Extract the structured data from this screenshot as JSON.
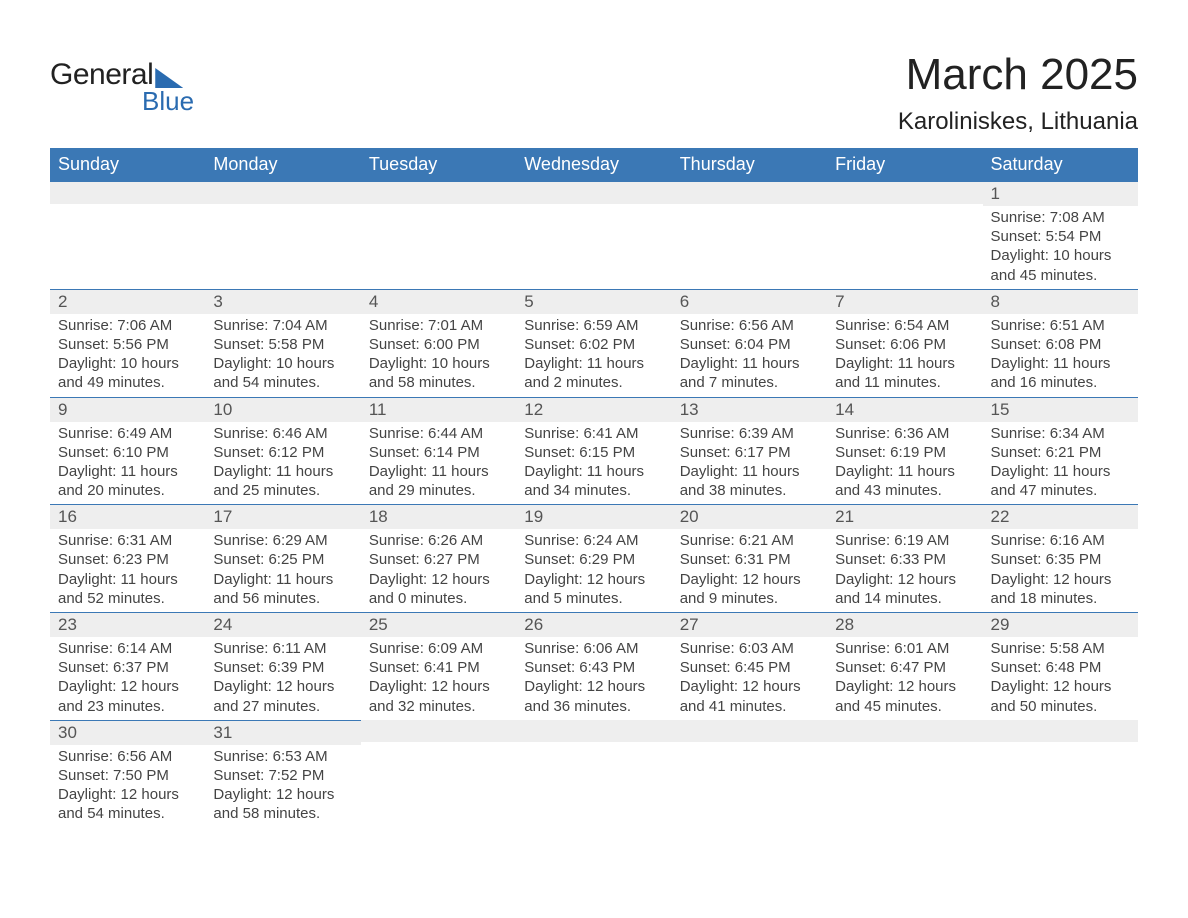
{
  "logo": {
    "text1": "General",
    "text2": "Blue"
  },
  "title": "March 2025",
  "location": "Karoliniskes, Lithuania",
  "colors": {
    "header_bg": "#3b78b5",
    "header_text": "#ffffff",
    "daynum_bg": "#eeeeee",
    "body_text": "#444444",
    "accent": "#2a6bb0"
  },
  "day_headers": [
    "Sunday",
    "Monday",
    "Tuesday",
    "Wednesday",
    "Thursday",
    "Friday",
    "Saturday"
  ],
  "weeks": [
    [
      {
        "n": "",
        "sr": "",
        "ss": "",
        "d1": "",
        "d2": ""
      },
      {
        "n": "",
        "sr": "",
        "ss": "",
        "d1": "",
        "d2": ""
      },
      {
        "n": "",
        "sr": "",
        "ss": "",
        "d1": "",
        "d2": ""
      },
      {
        "n": "",
        "sr": "",
        "ss": "",
        "d1": "",
        "d2": ""
      },
      {
        "n": "",
        "sr": "",
        "ss": "",
        "d1": "",
        "d2": ""
      },
      {
        "n": "",
        "sr": "",
        "ss": "",
        "d1": "",
        "d2": ""
      },
      {
        "n": "1",
        "sr": "Sunrise: 7:08 AM",
        "ss": "Sunset: 5:54 PM",
        "d1": "Daylight: 10 hours",
        "d2": "and 45 minutes."
      }
    ],
    [
      {
        "n": "2",
        "sr": "Sunrise: 7:06 AM",
        "ss": "Sunset: 5:56 PM",
        "d1": "Daylight: 10 hours",
        "d2": "and 49 minutes."
      },
      {
        "n": "3",
        "sr": "Sunrise: 7:04 AM",
        "ss": "Sunset: 5:58 PM",
        "d1": "Daylight: 10 hours",
        "d2": "and 54 minutes."
      },
      {
        "n": "4",
        "sr": "Sunrise: 7:01 AM",
        "ss": "Sunset: 6:00 PM",
        "d1": "Daylight: 10 hours",
        "d2": "and 58 minutes."
      },
      {
        "n": "5",
        "sr": "Sunrise: 6:59 AM",
        "ss": "Sunset: 6:02 PM",
        "d1": "Daylight: 11 hours",
        "d2": "and 2 minutes."
      },
      {
        "n": "6",
        "sr": "Sunrise: 6:56 AM",
        "ss": "Sunset: 6:04 PM",
        "d1": "Daylight: 11 hours",
        "d2": "and 7 minutes."
      },
      {
        "n": "7",
        "sr": "Sunrise: 6:54 AM",
        "ss": "Sunset: 6:06 PM",
        "d1": "Daylight: 11 hours",
        "d2": "and 11 minutes."
      },
      {
        "n": "8",
        "sr": "Sunrise: 6:51 AM",
        "ss": "Sunset: 6:08 PM",
        "d1": "Daylight: 11 hours",
        "d2": "and 16 minutes."
      }
    ],
    [
      {
        "n": "9",
        "sr": "Sunrise: 6:49 AM",
        "ss": "Sunset: 6:10 PM",
        "d1": "Daylight: 11 hours",
        "d2": "and 20 minutes."
      },
      {
        "n": "10",
        "sr": "Sunrise: 6:46 AM",
        "ss": "Sunset: 6:12 PM",
        "d1": "Daylight: 11 hours",
        "d2": "and 25 minutes."
      },
      {
        "n": "11",
        "sr": "Sunrise: 6:44 AM",
        "ss": "Sunset: 6:14 PM",
        "d1": "Daylight: 11 hours",
        "d2": "and 29 minutes."
      },
      {
        "n": "12",
        "sr": "Sunrise: 6:41 AM",
        "ss": "Sunset: 6:15 PM",
        "d1": "Daylight: 11 hours",
        "d2": "and 34 minutes."
      },
      {
        "n": "13",
        "sr": "Sunrise: 6:39 AM",
        "ss": "Sunset: 6:17 PM",
        "d1": "Daylight: 11 hours",
        "d2": "and 38 minutes."
      },
      {
        "n": "14",
        "sr": "Sunrise: 6:36 AM",
        "ss": "Sunset: 6:19 PM",
        "d1": "Daylight: 11 hours",
        "d2": "and 43 minutes."
      },
      {
        "n": "15",
        "sr": "Sunrise: 6:34 AM",
        "ss": "Sunset: 6:21 PM",
        "d1": "Daylight: 11 hours",
        "d2": "and 47 minutes."
      }
    ],
    [
      {
        "n": "16",
        "sr": "Sunrise: 6:31 AM",
        "ss": "Sunset: 6:23 PM",
        "d1": "Daylight: 11 hours",
        "d2": "and 52 minutes."
      },
      {
        "n": "17",
        "sr": "Sunrise: 6:29 AM",
        "ss": "Sunset: 6:25 PM",
        "d1": "Daylight: 11 hours",
        "d2": "and 56 minutes."
      },
      {
        "n": "18",
        "sr": "Sunrise: 6:26 AM",
        "ss": "Sunset: 6:27 PM",
        "d1": "Daylight: 12 hours",
        "d2": "and 0 minutes."
      },
      {
        "n": "19",
        "sr": "Sunrise: 6:24 AM",
        "ss": "Sunset: 6:29 PM",
        "d1": "Daylight: 12 hours",
        "d2": "and 5 minutes."
      },
      {
        "n": "20",
        "sr": "Sunrise: 6:21 AM",
        "ss": "Sunset: 6:31 PM",
        "d1": "Daylight: 12 hours",
        "d2": "and 9 minutes."
      },
      {
        "n": "21",
        "sr": "Sunrise: 6:19 AM",
        "ss": "Sunset: 6:33 PM",
        "d1": "Daylight: 12 hours",
        "d2": "and 14 minutes."
      },
      {
        "n": "22",
        "sr": "Sunrise: 6:16 AM",
        "ss": "Sunset: 6:35 PM",
        "d1": "Daylight: 12 hours",
        "d2": "and 18 minutes."
      }
    ],
    [
      {
        "n": "23",
        "sr": "Sunrise: 6:14 AM",
        "ss": "Sunset: 6:37 PM",
        "d1": "Daylight: 12 hours",
        "d2": "and 23 minutes."
      },
      {
        "n": "24",
        "sr": "Sunrise: 6:11 AM",
        "ss": "Sunset: 6:39 PM",
        "d1": "Daylight: 12 hours",
        "d2": "and 27 minutes."
      },
      {
        "n": "25",
        "sr": "Sunrise: 6:09 AM",
        "ss": "Sunset: 6:41 PM",
        "d1": "Daylight: 12 hours",
        "d2": "and 32 minutes."
      },
      {
        "n": "26",
        "sr": "Sunrise: 6:06 AM",
        "ss": "Sunset: 6:43 PM",
        "d1": "Daylight: 12 hours",
        "d2": "and 36 minutes."
      },
      {
        "n": "27",
        "sr": "Sunrise: 6:03 AM",
        "ss": "Sunset: 6:45 PM",
        "d1": "Daylight: 12 hours",
        "d2": "and 41 minutes."
      },
      {
        "n": "28",
        "sr": "Sunrise: 6:01 AM",
        "ss": "Sunset: 6:47 PM",
        "d1": "Daylight: 12 hours",
        "d2": "and 45 minutes."
      },
      {
        "n": "29",
        "sr": "Sunrise: 5:58 AM",
        "ss": "Sunset: 6:48 PM",
        "d1": "Daylight: 12 hours",
        "d2": "and 50 minutes."
      }
    ],
    [
      {
        "n": "30",
        "sr": "Sunrise: 6:56 AM",
        "ss": "Sunset: 7:50 PM",
        "d1": "Daylight: 12 hours",
        "d2": "and 54 minutes."
      },
      {
        "n": "31",
        "sr": "Sunrise: 6:53 AM",
        "ss": "Sunset: 7:52 PM",
        "d1": "Daylight: 12 hours",
        "d2": "and 58 minutes."
      },
      {
        "n": "",
        "sr": "",
        "ss": "",
        "d1": "",
        "d2": ""
      },
      {
        "n": "",
        "sr": "",
        "ss": "",
        "d1": "",
        "d2": ""
      },
      {
        "n": "",
        "sr": "",
        "ss": "",
        "d1": "",
        "d2": ""
      },
      {
        "n": "",
        "sr": "",
        "ss": "",
        "d1": "",
        "d2": ""
      },
      {
        "n": "",
        "sr": "",
        "ss": "",
        "d1": "",
        "d2": ""
      }
    ]
  ]
}
